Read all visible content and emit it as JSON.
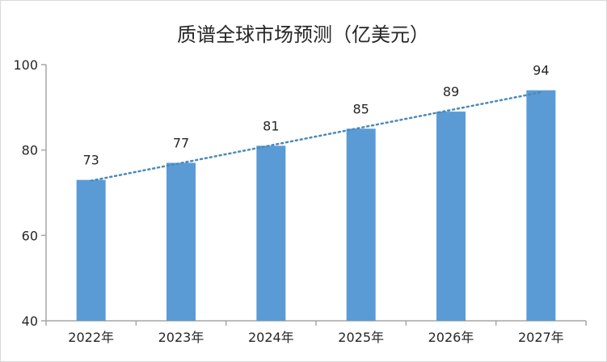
{
  "chart_data": {
    "type": "bar",
    "title": "质谱全球市场预测（亿美元）",
    "categories": [
      "2022年",
      "2023年",
      "2024年",
      "2025年",
      "2026年",
      "2027年"
    ],
    "values": [
      73,
      77,
      81,
      85,
      89,
      94
    ],
    "data_labels": [
      "73",
      "77",
      "81",
      "85",
      "89",
      "94"
    ],
    "ylim": [
      40,
      100
    ],
    "yticks": [
      40,
      60,
      80,
      100
    ],
    "ytick_labels": [
      "40",
      "60",
      "80",
      "100"
    ],
    "xlabel": "",
    "ylabel": "",
    "grid": false,
    "trendline": "linear-dotted",
    "colors": {
      "bar": "#5b9bd5",
      "trend": "#4a8ab8",
      "axis": "#a6a6a6",
      "text": "#262626"
    }
  }
}
